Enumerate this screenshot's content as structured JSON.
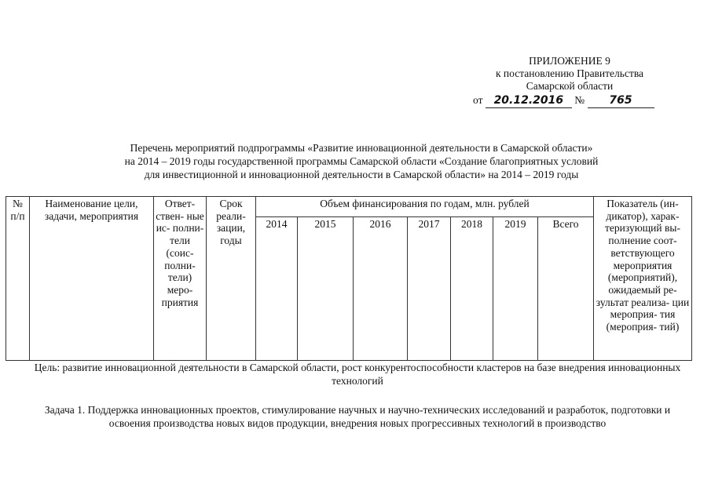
{
  "header": {
    "appendix": "ПРИЛОЖЕНИЕ 9",
    "line2": "к постановлению Правительства",
    "line3": "Самарской области",
    "from_label": "от",
    "date": "20.12.2016",
    "number_label": "№",
    "number": "765"
  },
  "title": {
    "line1": "Перечень мероприятий подпрограммы «Развитие инновационной деятельности в Самарской области»",
    "line2": "на 2014 – 2019 годы государственной программы Самарской области «Создание благоприятных условий",
    "line3": "для инвестиционной и инновационной деятельности в Самарской области» на 2014 – 2019 годы"
  },
  "table": {
    "col_no": "№ п/п",
    "col_name": "Наименование цели, задачи, мероприятия",
    "col_resp": "Ответ- ствен- ные ис- полни- тели (соис- полни- тели) меро- приятия",
    "col_term": "Срок реали- зации, годы",
    "col_funding": "Объем финансирования по годам, млн. рублей",
    "years": [
      "2014",
      "2015",
      "2016",
      "2017",
      "2018",
      "2019",
      "Всего"
    ],
    "col_indicator": "Показатель (ин- дикатор), харак- теризующий вы- полнение соот- ветствующего мероприятия (мероприятий), ожидаемый ре- зультат реализа- ции мероприя- тия (мероприя- тий)"
  },
  "goal": "Цель: развитие инновационной деятельности в Самарской области, рост конкурентоспособности кластеров на базе внедрения инновационных технологий",
  "task": "Задача 1. Поддержка инновационных проектов, стимулирование научных и научно-технических исследований и разработок, подготовки и освоения производства новых видов продукции, внедрения новых прогрессивных технологий в производство"
}
